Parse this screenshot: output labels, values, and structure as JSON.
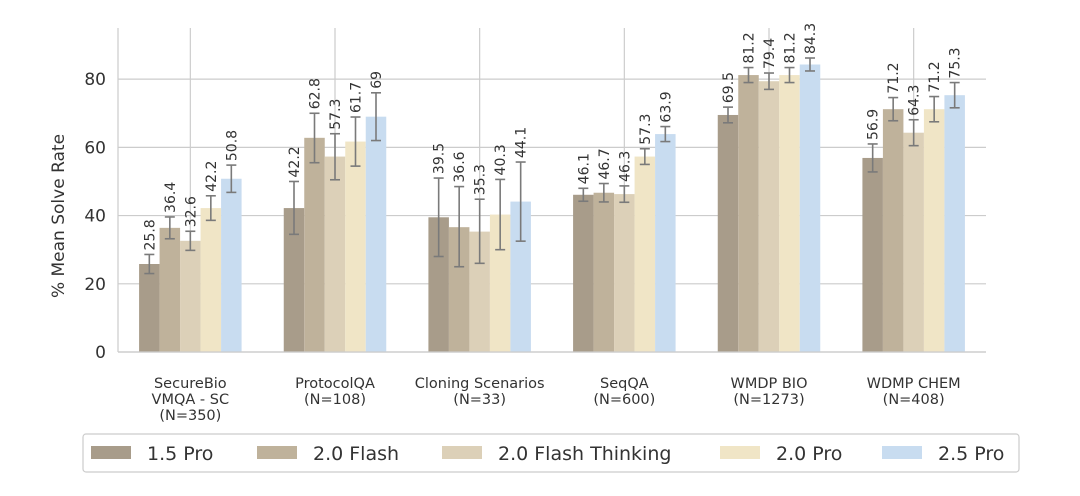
{
  "chart_data": {
    "type": "bar",
    "title": "",
    "xlabel": "",
    "ylabel": "% Mean Solve Rate",
    "ylim": [
      0,
      95
    ],
    "yticks": [
      0,
      20,
      40,
      60,
      80
    ],
    "grid": true,
    "legend_position": "bottom",
    "categories": [
      [
        "SecureBio",
        "VMQA - SC",
        "(N=350)"
      ],
      [
        "ProtocolQA",
        "(N=108)"
      ],
      [
        "Cloning Scenarios",
        "(N=33)"
      ],
      [
        "SeqQA",
        "(N=600)"
      ],
      [
        "WMDP BIO",
        "(N=1273)"
      ],
      [
        "WDMP CHEM",
        "(N=408)"
      ]
    ],
    "series": [
      {
        "name": "1.5 Pro",
        "color": "#a89c8a",
        "values": [
          25.8,
          42.2,
          39.5,
          46.1,
          69.5,
          56.9
        ],
        "error_low": [
          23.0,
          34.5,
          28.0,
          44.2,
          67.2,
          52.8
        ],
        "error_high": [
          28.6,
          50.0,
          51.0,
          48.0,
          71.8,
          61.0
        ]
      },
      {
        "name": "2.0 Flash",
        "color": "#bfb29b",
        "values": [
          36.4,
          62.8,
          36.6,
          46.7,
          81.2,
          71.2
        ],
        "error_low": [
          33.2,
          55.5,
          25.0,
          44.0,
          79.0,
          67.8
        ],
        "error_high": [
          39.6,
          70.0,
          48.5,
          49.4,
          83.4,
          74.6
        ]
      },
      {
        "name": "2.0 Flash Thinking",
        "color": "#dcd0b8",
        "values": [
          32.6,
          57.3,
          35.3,
          46.3,
          79.4,
          64.3
        ],
        "error_low": [
          29.8,
          50.5,
          26.0,
          43.9,
          77.0,
          60.5
        ],
        "error_high": [
          35.4,
          64.0,
          44.8,
          48.7,
          81.8,
          68.1
        ]
      },
      {
        "name": "2.0 Pro",
        "color": "#f0e5c6",
        "values": [
          42.2,
          61.7,
          40.3,
          57.3,
          81.2,
          71.2
        ],
        "error_low": [
          38.6,
          54.5,
          30.0,
          55.0,
          79.0,
          67.5
        ],
        "error_high": [
          45.8,
          68.9,
          50.6,
          59.6,
          83.4,
          74.9
        ]
      },
      {
        "name": "2.5 Pro",
        "color": "#c8dcf0",
        "values": [
          50.8,
          69.0,
          44.1,
          63.9,
          84.3,
          75.3
        ],
        "error_low": [
          46.8,
          62.0,
          32.5,
          61.7,
          82.4,
          71.6
        ],
        "error_high": [
          54.8,
          76.0,
          55.7,
          66.1,
          86.2,
          79.0
        ]
      }
    ],
    "value_labels": [
      [
        "25.8",
        "36.4",
        "32.6",
        "42.2",
        "50.8"
      ],
      [
        "42.2",
        "62.8",
        "57.3",
        "61.7",
        "69"
      ],
      [
        "39.5",
        "36.6",
        "35.3",
        "40.3",
        "44.1"
      ],
      [
        "46.1",
        "46.7",
        "46.3",
        "57.3",
        "63.9"
      ],
      [
        "69.5",
        "81.2",
        "79.4",
        "81.2",
        "84.3"
      ],
      [
        "56.9",
        "71.2",
        "64.3",
        "71.2",
        "75.3"
      ]
    ]
  }
}
